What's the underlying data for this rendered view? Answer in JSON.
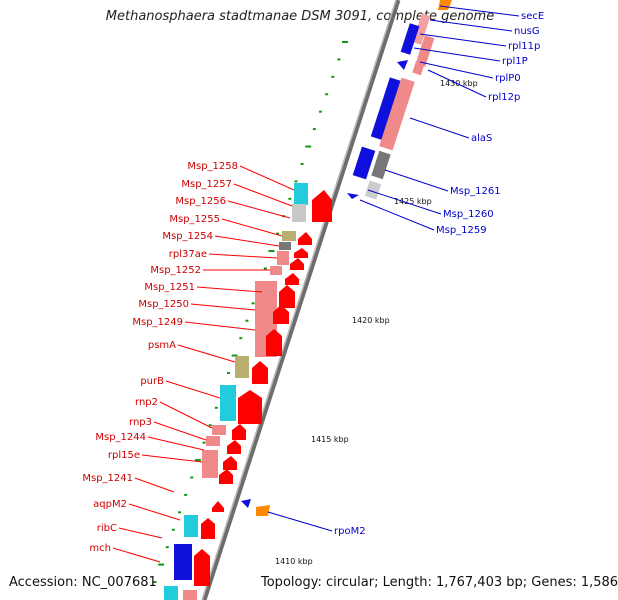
{
  "title": "Methanosphaera stadtmanae DSM 3091, complete genome",
  "footer": {
    "accession_label": "Accession:",
    "accession": "NC_007681",
    "topology_text": "Topology: circular; Length: 1,767,403 bp; Genes: 1,586"
  },
  "scale_labels": [
    "1430 kbp",
    "1425 kbp",
    "1420 kbp",
    "1415 kbp",
    "1410 kbp"
  ],
  "left_genes": [
    "Msp_1258",
    "Msp_1257",
    "Msp_1256",
    "Msp_1255",
    "Msp_1254",
    "rpl37ae",
    "Msp_1252",
    "Msp_1251",
    "Msp_1250",
    "Msp_1249",
    "psmA",
    "purB",
    "rnp2",
    "rnp3",
    "Msp_1244",
    "rpl15e",
    "Msp_1241",
    "aqpM2",
    "ribC",
    "mch"
  ],
  "right_genes": [
    "secE",
    "nusG",
    "rpl11p",
    "rpl1P",
    "rplP0",
    "rpl12p",
    "alaS",
    "Msp_1261",
    "Msp_1260",
    "Msp_1259",
    "rpoM2"
  ],
  "colors": {
    "forward_red": "#ff0000",
    "pink_block": "#f08a8a",
    "cyan": "#22ccdd",
    "blue": "#1010dd",
    "olive": "#b8ae70",
    "gray": "#888888",
    "orange": "#ff8800",
    "backbone": "#8a8a8a",
    "tick_green": "#119911"
  }
}
